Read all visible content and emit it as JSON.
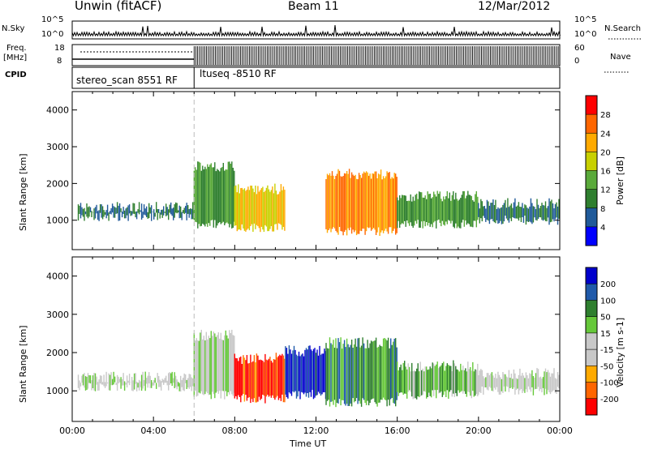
{
  "header": {
    "station": "Unwin (fitACF)",
    "beam": "Beam 11",
    "date": "12/Mar/2012"
  },
  "nsky_panel": {
    "left_label": "N.Sky",
    "right_label": "N.Search",
    "left_ticks": [
      "10^5",
      "10^0"
    ],
    "right_ticks": [
      "10^5",
      "10^0"
    ]
  },
  "freq_panel": {
    "left_label_1": "Freq.",
    "left_label_2": "[MHz]",
    "right_label": "Nave",
    "left_ticks": [
      "18",
      "8"
    ],
    "right_ticks": [
      "60",
      "0"
    ]
  },
  "cpid_panel": {
    "label": "CPID",
    "modes": [
      {
        "name": "stereo_scan 8551 RF",
        "start_hour": 0
      },
      {
        "name": "ltuseq -8510 RF",
        "start_hour": 6
      }
    ]
  },
  "time_axis": {
    "label": "Time UT",
    "ticks": [
      "00:00",
      "04:00",
      "08:00",
      "12:00",
      "16:00",
      "20:00",
      "00:00"
    ]
  },
  "colors": {
    "power_scale": [
      "#0000ff",
      "#205a9a",
      "#2f7f2f",
      "#5aaa3a",
      "#c8d000",
      "#ffaa00",
      "#ff6600",
      "#ff0000"
    ],
    "velocity_scale": [
      "#ff0000",
      "#ff6600",
      "#ffaa00",
      "#c8c8c8",
      "#c8c8c8",
      "#66c83a",
      "#2f7f2f",
      "#205aaa",
      "#0000cc"
    ]
  },
  "chart_data": [
    {
      "type": "heatmap",
      "title": "Power",
      "xlabel": "Time UT",
      "ylabel": "Slant Range [km]",
      "ylim": [
        200,
        4500
      ],
      "xlim": [
        0,
        24
      ],
      "y_ticks": [
        "1000",
        "2000",
        "3000",
        "4000"
      ],
      "colorbar": {
        "label": "Power [dB]",
        "ticks": [
          "28",
          "24",
          "20",
          "16",
          "12",
          "8",
          "4"
        ],
        "range": [
          0,
          32
        ]
      },
      "regions": [
        {
          "t0": 0.3,
          "t1": 6.0,
          "r0": 1100,
          "r1": 1500,
          "value": 8
        },
        {
          "t0": 6.0,
          "t1": 8.0,
          "r0": 900,
          "r1": 2600,
          "value": 12
        },
        {
          "t0": 8.0,
          "t1": 10.5,
          "r0": 800,
          "r1": 2000,
          "value": 20
        },
        {
          "t0": 12.5,
          "t1": 16.0,
          "r0": 700,
          "r1": 2400,
          "value": 24
        },
        {
          "t0": 16.0,
          "t1": 20.0,
          "r0": 900,
          "r1": 1800,
          "value": 12
        },
        {
          "t0": 20.0,
          "t1": 24.0,
          "r0": 1000,
          "r1": 1600,
          "value": 8
        }
      ]
    },
    {
      "type": "heatmap",
      "title": "Velocity",
      "xlabel": "Time UT",
      "ylabel": "Slant Range [km]",
      "ylim": [
        200,
        4500
      ],
      "xlim": [
        0,
        24
      ],
      "y_ticks": [
        "1000",
        "2000",
        "3000",
        "4000"
      ],
      "colorbar": {
        "label": "Velocity [m s-1]",
        "ticks": [
          "200",
          "100",
          "50",
          "15",
          "-15",
          "-50",
          "-100",
          "-200"
        ],
        "range": [
          -250,
          250
        ]
      },
      "regions": [
        {
          "t0": 0.3,
          "t1": 6.0,
          "r0": 1100,
          "r1": 1500,
          "value": 0
        },
        {
          "t0": 6.0,
          "t1": 8.0,
          "r0": 900,
          "r1": 2600,
          "value": 0
        },
        {
          "t0": 8.0,
          "t1": 10.5,
          "r0": 800,
          "r1": 2000,
          "value": -200
        },
        {
          "t0": 10.5,
          "t1": 12.5,
          "r0": 900,
          "r1": 2200,
          "value": 200
        },
        {
          "t0": 12.5,
          "t1": 16.0,
          "r0": 700,
          "r1": 2400,
          "value": 100
        },
        {
          "t0": 16.0,
          "t1": 20.0,
          "r0": 900,
          "r1": 1800,
          "value": 50
        },
        {
          "t0": 20.0,
          "t1": 24.0,
          "r0": 1000,
          "r1": 1600,
          "value": 0
        }
      ]
    }
  ]
}
